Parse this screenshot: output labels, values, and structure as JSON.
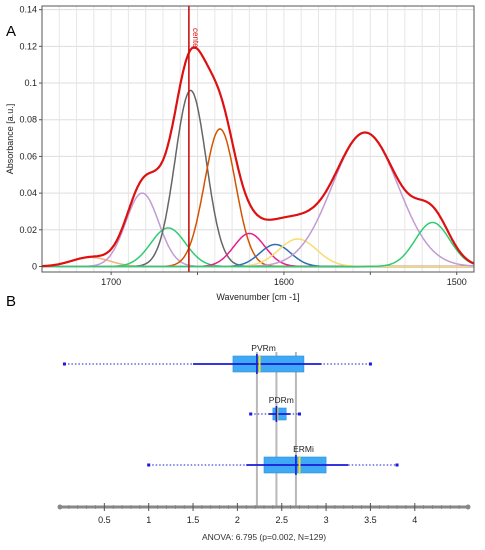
{
  "panels": {
    "a_label": "A",
    "b_label": "B"
  },
  "chart_data": [
    {
      "type": "line",
      "panel": "A",
      "xlabel": "Wavenumber [cm -1]",
      "ylabel": "Absorbance [a.u.]",
      "xlim": [
        1740,
        1490
      ],
      "ylim": [
        -0.003,
        0.142
      ],
      "x_reversed": true,
      "grid": true,
      "x_ticks": [
        1700,
        1650,
        1600,
        1550,
        1500
      ],
      "x_tick_labels": [
        "1700",
        "",
        "1600",
        "",
        "1500"
      ],
      "y_ticks": [
        0,
        0.02,
        0.04,
        0.06,
        0.08,
        0.1,
        0.12,
        0.14
      ],
      "y_tick_labels": [
        "0",
        "0.02",
        "0.04",
        "0.06",
        "0.08",
        "0.1",
        "0.12",
        "0.14"
      ],
      "marker": {
        "label": "center",
        "x": 1655,
        "color": "#cc1111"
      },
      "components": [
        {
          "center": 1712,
          "height": 0.005,
          "width": 11,
          "color": "#f0b27a"
        },
        {
          "center": 1682,
          "height": 0.04,
          "width": 9.5,
          "color": "#c39bd3"
        },
        {
          "center": 1667,
          "height": 0.021,
          "width": 10,
          "color": "#2ecc71"
        },
        {
          "center": 1654,
          "height": 0.096,
          "width": 9,
          "color": "#666666"
        },
        {
          "center": 1637,
          "height": 0.075,
          "width": 9,
          "color": "#d35400"
        },
        {
          "center": 1620,
          "height": 0.018,
          "width": 9,
          "color": "#e91e8c"
        },
        {
          "center": 1605,
          "height": 0.012,
          "width": 9,
          "color": "#2e6db4"
        },
        {
          "center": 1592,
          "height": 0.015,
          "width": 11,
          "color": "#f7dc6f"
        },
        {
          "center": 1553,
          "height": 0.073,
          "width": 19,
          "color": "#c39bd3"
        },
        {
          "center": 1514,
          "height": 0.024,
          "width": 10,
          "color": "#2ecc71"
        }
      ],
      "envelope": {
        "color": "#dd1111",
        "fit_color": "#111111"
      }
    },
    {
      "type": "boxplot",
      "panel": "B",
      "xlim": [
        0,
        4.6
      ],
      "x_ticks": [
        0.5,
        1,
        1.5,
        2,
        2.5,
        3,
        3.5,
        4
      ],
      "x_tick_labels": [
        "0.5",
        "1",
        "1.5",
        "2",
        "2.5",
        "3",
        "3.5",
        "4"
      ],
      "series": [
        {
          "name": "PVRm",
          "min": 0.05,
          "whisker_low": 1.5,
          "q1": 1.95,
          "median": 2.25,
          "mean": 2.22,
          "q3": 2.75,
          "whisker_high": 2.95,
          "max": 3.5
        },
        {
          "name": "PDRm",
          "min": 2.15,
          "whisker_low": 2.35,
          "q1": 2.4,
          "median": 2.45,
          "mean": 2.44,
          "q3": 2.55,
          "whisker_high": 2.6,
          "max": 2.7
        },
        {
          "name": "ERMi",
          "min": 1.0,
          "whisker_low": 2.1,
          "q1": 2.3,
          "median": 2.7,
          "mean": 2.66,
          "q3": 3.0,
          "whisker_high": 3.25,
          "max": 3.8
        }
      ],
      "reference_lines": [
        2.22,
        2.44,
        2.66
      ],
      "footer": "ANOVA: 6.795 (p=0.002, N=129)",
      "colors": {
        "box": "#3fa9f5",
        "whisker": "#1a1adb",
        "median": "#f5e11a",
        "mean": "#1a1adb",
        "reference": "#b8b8b8"
      }
    }
  ]
}
